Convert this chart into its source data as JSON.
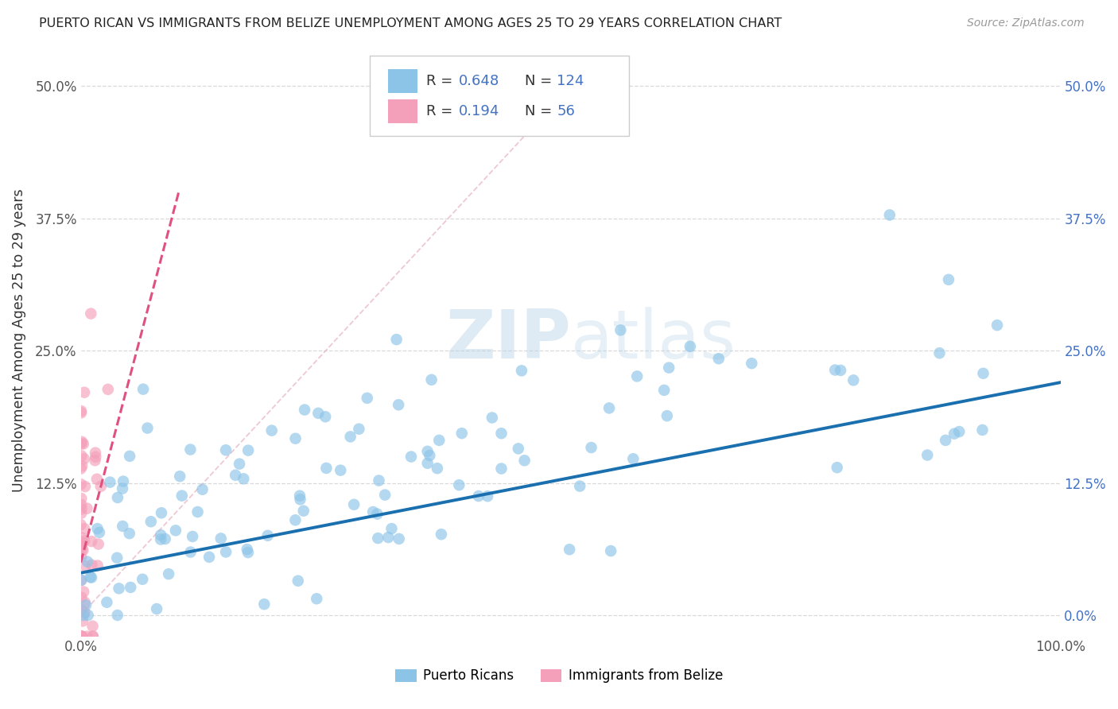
{
  "title": "PUERTO RICAN VS IMMIGRANTS FROM BELIZE UNEMPLOYMENT AMONG AGES 25 TO 29 YEARS CORRELATION CHART",
  "source": "Source: ZipAtlas.com",
  "ylabel": "Unemployment Among Ages 25 to 29 years",
  "xlim": [
    0,
    1.0
  ],
  "ylim": [
    -0.02,
    0.54
  ],
  "yticks": [
    0.0,
    0.125,
    0.25,
    0.375,
    0.5
  ],
  "ytick_labels_left": [
    "",
    "12.5%",
    "25.0%",
    "37.5%",
    "50.0%"
  ],
  "ytick_labels_right": [
    "0.0%",
    "12.5%",
    "25.0%",
    "37.5%",
    "50.0%"
  ],
  "xtick_labels": [
    "0.0%",
    "",
    "",
    "",
    "100.0%"
  ],
  "blue_color": "#8cc4e8",
  "pink_color": "#f4a0ba",
  "blue_line_color": "#1a6faf",
  "pink_line_color": "#e05080",
  "diag_line_color": "#e8b0c0",
  "watermark_color": "#d0e4f0",
  "legend_color": "#4472c4",
  "background_color": "#ffffff",
  "grid_color": "#d0d0d0",
  "blue_r": 0.648,
  "blue_n": 124,
  "pink_r": 0.194,
  "pink_n": 56
}
